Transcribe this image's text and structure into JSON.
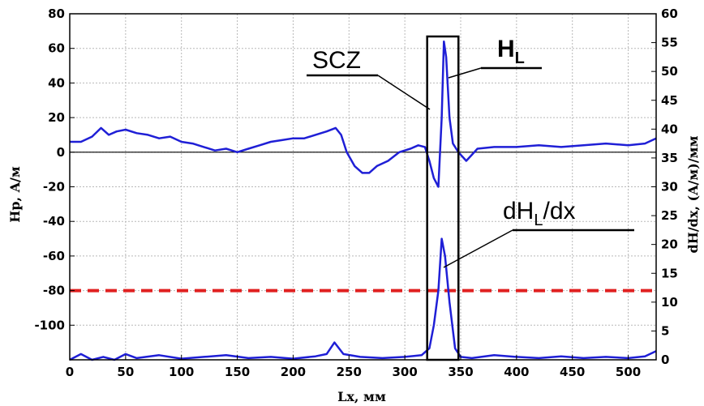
{
  "chart_data": {
    "type": "line",
    "xlabel": "Lx, мм",
    "ylabel_left": "Hp, A/м",
    "ylabel_right": "dH/dx, (A/м)/мм",
    "xlim": [
      0,
      525
    ],
    "ylim_left": [
      -120,
      80
    ],
    "ylim_right": [
      0,
      60
    ],
    "x_ticks": [
      "0",
      "50",
      "100",
      "150",
      "200",
      "250",
      "300",
      "350",
      "400",
      "450",
      "500"
    ],
    "y_ticks_left": [
      "80",
      "60",
      "40",
      "20",
      "0",
      "-20",
      "-40",
      "-60",
      "-80",
      "-100"
    ],
    "y_ticks_right": [
      "60",
      "55",
      "50",
      "45",
      "40",
      "35",
      "30",
      "25",
      "20",
      "15",
      "10",
      "5",
      "0"
    ],
    "grid": true,
    "threshold": {
      "axis": "left",
      "value": -80,
      "color": "#e02020",
      "style": "dashed"
    },
    "highlight_region": {
      "x": [
        320,
        348
      ]
    },
    "annotations": [
      {
        "text": "SCZ"
      },
      {
        "text": "H",
        "sub": "L"
      },
      {
        "text": "dH",
        "sub": "L",
        "tail": "/dx"
      }
    ],
    "series": [
      {
        "axis": "left",
        "color": "#1f1fd6",
        "x": [
          0,
          10,
          20,
          28,
          35,
          42,
          50,
          60,
          70,
          80,
          90,
          100,
          110,
          120,
          130,
          140,
          150,
          160,
          170,
          180,
          190,
          200,
          210,
          220,
          230,
          238,
          243,
          248,
          255,
          262,
          268,
          275,
          285,
          295,
          305,
          312,
          318,
          322,
          326,
          330,
          333,
          335,
          337,
          340,
          343,
          348,
          355,
          365,
          380,
          400,
          420,
          440,
          460,
          480,
          500,
          515,
          525
        ],
        "y": [
          6,
          6,
          9,
          14,
          10,
          12,
          13,
          11,
          10,
          8,
          9,
          6,
          5,
          3,
          1,
          2,
          0,
          2,
          4,
          6,
          7,
          8,
          8,
          10,
          12,
          14,
          10,
          0,
          -8,
          -12,
          -12,
          -8,
          -5,
          0,
          2,
          4,
          3,
          -5,
          -15,
          -20,
          20,
          64,
          55,
          20,
          5,
          0,
          -5,
          2,
          3,
          3,
          4,
          3,
          4,
          5,
          4,
          5,
          8
        ]
      },
      {
        "axis": "right",
        "color": "#1f1fd6",
        "x": [
          0,
          10,
          20,
          30,
          40,
          50,
          60,
          80,
          100,
          120,
          140,
          160,
          180,
          200,
          220,
          230,
          237,
          245,
          260,
          280,
          300,
          315,
          322,
          326,
          330,
          333,
          336,
          340,
          345,
          350,
          360,
          380,
          400,
          420,
          440,
          460,
          480,
          500,
          515,
          525
        ],
        "y": [
          0,
          1,
          0,
          0.5,
          0,
          1,
          0.3,
          0.8,
          0.2,
          0.5,
          0.8,
          0.3,
          0.5,
          0.2,
          0.6,
          1,
          3,
          1,
          0.5,
          0.3,
          0.5,
          0.8,
          2,
          6,
          12,
          21,
          18,
          10,
          2,
          0.5,
          0.3,
          0.8,
          0.5,
          0.3,
          0.6,
          0.3,
          0.5,
          0.3,
          0.6,
          1.5
        ]
      }
    ]
  }
}
